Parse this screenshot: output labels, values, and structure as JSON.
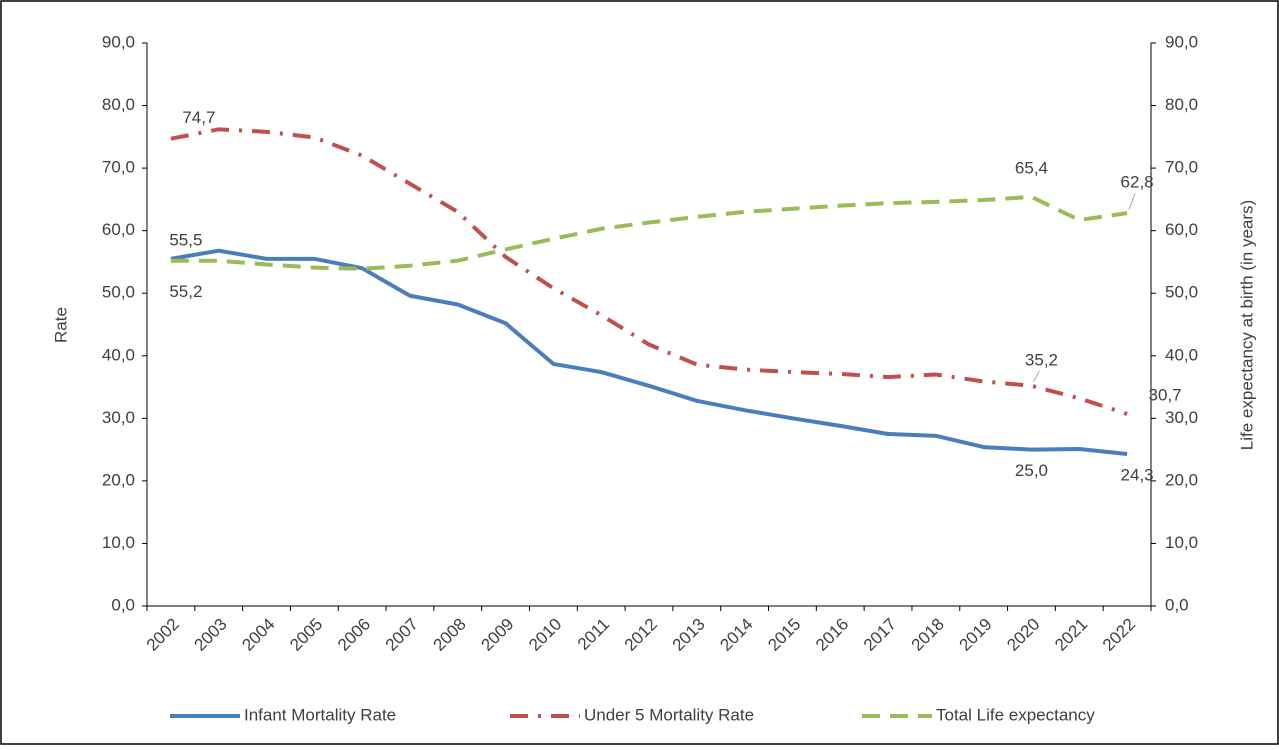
{
  "chart_data": {
    "type": "line",
    "y_label": "Rate",
    "y2_label": "Life expectancy at birth (in years)",
    "categories": [
      "2002",
      "2003",
      "2004",
      "2005",
      "2006",
      "2007",
      "2008",
      "2009",
      "2010",
      "2011",
      "2012",
      "2013",
      "2014",
      "2015",
      "2016",
      "2017",
      "2018",
      "2019",
      "2020",
      "2021",
      "2022"
    ],
    "series": [
      {
        "name": "Infant Mortality Rate",
        "color": "#4a7ebb",
        "style": "solid",
        "values": [
          55.5,
          56.8,
          55.5,
          55.5,
          54.0,
          49.6,
          48.2,
          45.2,
          38.7,
          37.4,
          35.2,
          32.8,
          31.3,
          30.0,
          28.8,
          27.5,
          27.2,
          25.4,
          25.0,
          25.1,
          24.3
        ],
        "value_labels": [
          "55,5",
          null,
          null,
          null,
          null,
          null,
          null,
          null,
          null,
          null,
          null,
          null,
          null,
          null,
          null,
          null,
          null,
          null,
          "25,0",
          null,
          "24,3"
        ]
      },
      {
        "name": "Under 5 Mortality Rate",
        "color": "#c0504d",
        "style": "dash-dot",
        "values": [
          74.7,
          76.2,
          75.8,
          74.9,
          72.0,
          67.5,
          63.0,
          55.8,
          50.8,
          46.5,
          41.8,
          38.6,
          37.8,
          37.4,
          37.1,
          36.6,
          37.0,
          35.9,
          35.2,
          33.2,
          30.7
        ],
        "value_labels": [
          "74,7",
          null,
          null,
          null,
          null,
          null,
          null,
          null,
          null,
          null,
          null,
          null,
          null,
          null,
          null,
          null,
          null,
          null,
          "35,2",
          null,
          "30,7"
        ]
      },
      {
        "name": "Total Life expectancy",
        "color": "#9bbb59",
        "style": "dash",
        "axis": "y2",
        "values": [
          55.2,
          55.2,
          54.6,
          54.1,
          53.9,
          54.4,
          55.2,
          57.0,
          58.7,
          60.3,
          61.3,
          62.2,
          63.0,
          63.5,
          64.0,
          64.4,
          64.6,
          64.9,
          65.4,
          61.7,
          62.8
        ],
        "value_labels": [
          "55,2",
          null,
          null,
          null,
          null,
          null,
          null,
          null,
          null,
          null,
          null,
          null,
          null,
          null,
          null,
          null,
          null,
          null,
          "65,4",
          null,
          "62,8"
        ]
      }
    ],
    "ylim": [
      0,
      90
    ],
    "yticks": [
      {
        "value": 0,
        "label": "0,0"
      },
      {
        "value": 10,
        "label": "10,0"
      },
      {
        "value": 20,
        "label": "20,0"
      },
      {
        "value": 30,
        "label": "30,0"
      },
      {
        "value": 40,
        "label": "40,0"
      },
      {
        "value": 50,
        "label": "50,0"
      },
      {
        "value": 60,
        "label": "60,0"
      },
      {
        "value": 70,
        "label": "70,0"
      },
      {
        "value": 80,
        "label": "80,0"
      },
      {
        "value": 90,
        "label": "90,0"
      }
    ],
    "y2lim": [
      0,
      90
    ],
    "y2ticks": [
      {
        "value": 0,
        "label": "0,0"
      },
      {
        "value": 10,
        "label": "10,0"
      },
      {
        "value": 20,
        "label": "20,0"
      },
      {
        "value": 30,
        "label": "30,0"
      },
      {
        "value": 40,
        "label": "40,0"
      },
      {
        "value": 50,
        "label": "50,0"
      },
      {
        "value": 60,
        "label": "60,0"
      },
      {
        "value": 70,
        "label": "70,0"
      },
      {
        "value": 80,
        "label": "80,0"
      },
      {
        "value": 90,
        "label": "90,0"
      }
    ],
    "grid": false,
    "legend": "bottom"
  }
}
